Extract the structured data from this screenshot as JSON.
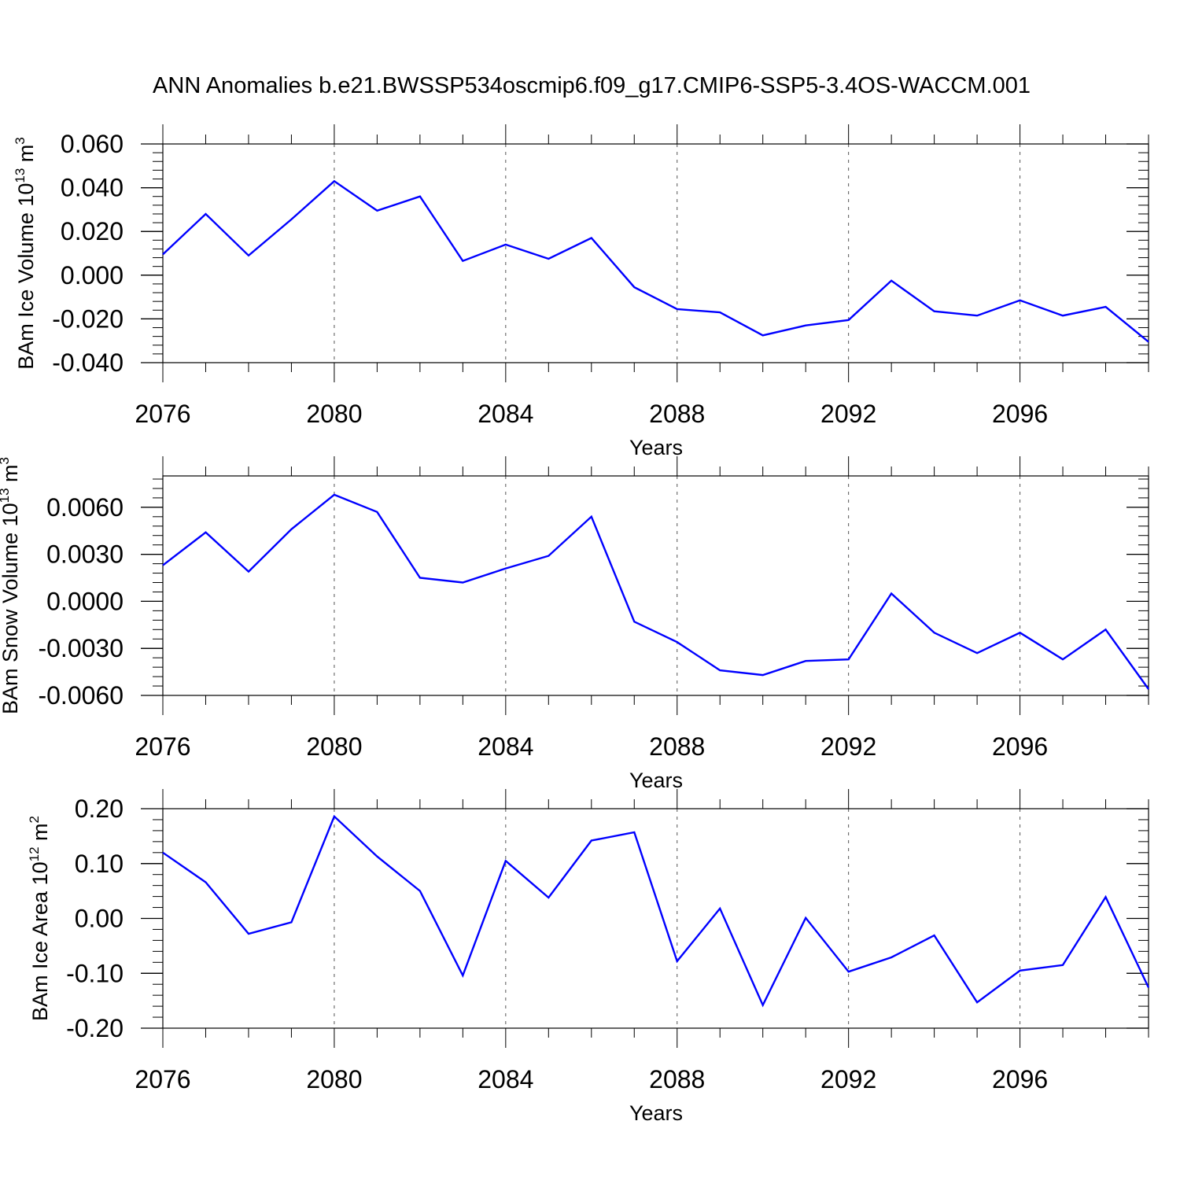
{
  "title": "ANN Anomalies b.e21.BWSSP534oscmip6.f09_g17.CMIP6-SSP5-3.4OS-WACCM.001",
  "colors": {
    "line": "#0000ff",
    "axis": "#000000",
    "grid": "#555555"
  },
  "chart_data": [
    {
      "type": "line",
      "ylabel": "BAm Ice Volume 10",
      "ylabel_exp": "13",
      "ylabel_unit": " m",
      "ylabel_unit_exp": "3",
      "xlabel": "Years",
      "xlim": [
        2076,
        2099
      ],
      "ylim": [
        -0.04,
        0.06
      ],
      "yticks": [
        -0.04,
        -0.02,
        0.0,
        0.02,
        0.04,
        0.06
      ],
      "ytick_labels": [
        "-0.040",
        "-0.020",
        "0.000",
        "0.020",
        "0.040",
        "0.060"
      ],
      "xticks": [
        2076,
        2080,
        2084,
        2088,
        2092,
        2096
      ],
      "xtick_labels": [
        "2076",
        "2080",
        "2084",
        "2088",
        "2092",
        "2096"
      ],
      "grid": "x-dashed",
      "x": [
        2076,
        2077,
        2078,
        2079,
        2080,
        2081,
        2082,
        2083,
        2084,
        2085,
        2086,
        2087,
        2088,
        2089,
        2090,
        2091,
        2092,
        2093,
        2094,
        2095,
        2096,
        2097,
        2098,
        2099
      ],
      "values": [
        0.0095,
        0.028,
        0.009,
        0.0255,
        0.043,
        0.0295,
        0.036,
        0.0065,
        0.014,
        0.0075,
        0.017,
        -0.0055,
        -0.0155,
        -0.017,
        -0.0275,
        -0.023,
        -0.0205,
        -0.0025,
        -0.0165,
        -0.0185,
        -0.0115,
        -0.0185,
        -0.0145,
        -0.0305
      ]
    },
    {
      "type": "line",
      "ylabel": "BAm Snow Volume 10",
      "ylabel_exp": "13",
      "ylabel_unit": " m",
      "ylabel_unit_exp": "3",
      "xlabel": "Years",
      "xlim": [
        2076,
        2099
      ],
      "ylim": [
        -0.006,
        0.008
      ],
      "yticks": [
        -0.006,
        -0.003,
        0.0,
        0.003,
        0.006
      ],
      "ytick_labels": [
        "-0.0060",
        "-0.0030",
        "0.0000",
        "0.0030",
        "0.0060"
      ],
      "xticks": [
        2076,
        2080,
        2084,
        2088,
        2092,
        2096
      ],
      "xtick_labels": [
        "2076",
        "2080",
        "2084",
        "2088",
        "2092",
        "2096"
      ],
      "grid": "x-dashed",
      "x": [
        2076,
        2077,
        2078,
        2079,
        2080,
        2081,
        2082,
        2083,
        2084,
        2085,
        2086,
        2087,
        2088,
        2089,
        2090,
        2091,
        2092,
        2093,
        2094,
        2095,
        2096,
        2097,
        2098,
        2099
      ],
      "values": [
        0.0023,
        0.0044,
        0.0019,
        0.0046,
        0.0068,
        0.0057,
        0.0015,
        0.0012,
        0.0021,
        0.0029,
        0.0054,
        -0.0013,
        -0.0026,
        -0.0044,
        -0.0047,
        -0.0038,
        -0.0037,
        0.0005,
        -0.002,
        -0.0033,
        -0.002,
        -0.0037,
        -0.0018,
        -0.0056
      ]
    },
    {
      "type": "line",
      "ylabel": "BAm Ice Area 10",
      "ylabel_exp": "12",
      "ylabel_unit": " m",
      "ylabel_unit_exp": "2",
      "xlabel": "Years",
      "xlim": [
        2076,
        2099
      ],
      "ylim": [
        -0.2,
        0.2
      ],
      "yticks": [
        -0.2,
        -0.1,
        0.0,
        0.1,
        0.2
      ],
      "ytick_labels": [
        "-0.20",
        "-0.10",
        "0.00",
        "0.10",
        "0.20"
      ],
      "xticks": [
        2076,
        2080,
        2084,
        2088,
        2092,
        2096
      ],
      "xtick_labels": [
        "2076",
        "2080",
        "2084",
        "2088",
        "2092",
        "2096"
      ],
      "grid": "x-dashed",
      "x": [
        2076,
        2077,
        2078,
        2079,
        2080,
        2081,
        2082,
        2083,
        2084,
        2085,
        2086,
        2087,
        2088,
        2089,
        2090,
        2091,
        2092,
        2093,
        2094,
        2095,
        2096,
        2097,
        2098,
        2099
      ],
      "values": [
        0.12,
        0.066,
        -0.028,
        -0.007,
        0.186,
        0.113,
        0.05,
        -0.104,
        0.105,
        0.038,
        0.142,
        0.157,
        -0.078,
        0.018,
        -0.158,
        0.001,
        -0.097,
        -0.071,
        -0.031,
        -0.153,
        -0.095,
        -0.085,
        0.039,
        -0.126
      ]
    }
  ]
}
